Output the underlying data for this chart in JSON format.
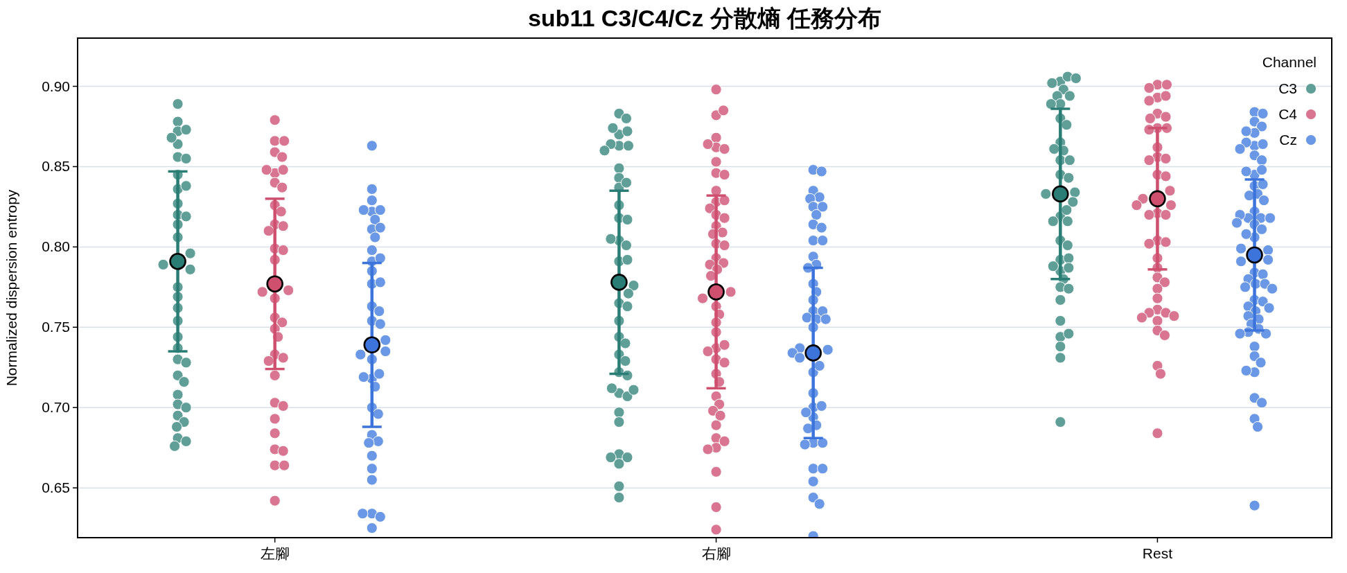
{
  "chart_data": {
    "type": "scatter",
    "title": "sub11 C3/C4/Cz 分散熵 任務分布",
    "ylabel": "Normalized dispersion entropy",
    "legend_title": "Channel",
    "categories": [
      "左腳",
      "右腳",
      "Rest"
    ],
    "ylim": [
      0.619,
      0.93
    ],
    "yticks": [
      {
        "value": 0.65,
        "label": "0.65"
      },
      {
        "value": 0.7,
        "label": "0.70"
      },
      {
        "value": 0.75,
        "label": "0.75"
      },
      {
        "value": 0.8,
        "label": "0.80"
      },
      {
        "value": 0.85,
        "label": "0.85"
      },
      {
        "value": 0.9,
        "label": "0.90"
      }
    ],
    "grid": "y",
    "legend": "top right",
    "marker": "circle",
    "series": [
      {
        "name": "C3",
        "color": "#5f9f98",
        "x": [
          "左腳",
          "左腳",
          "左腳",
          "左腳",
          "左腳",
          "左腳",
          "左腳",
          "左腳",
          "左腳",
          "左腳",
          "左腳",
          "左腳",
          "左腳",
          "左腳",
          "左腳",
          "左腳",
          "左腳",
          "左腳",
          "左腳",
          "左腳",
          "左腳",
          "左腳",
          "左腳",
          "左腳",
          "左腳",
          "左腳",
          "左腳",
          "左腳",
          "左腳",
          "左腳",
          "左腳",
          "左腳",
          "左腳",
          "左腳",
          "左腳",
          "左腳",
          "左腳",
          "左腳",
          "右腳",
          "右腳",
          "右腳",
          "右腳",
          "右腳",
          "右腳",
          "右腳",
          "右腳",
          "右腳",
          "右腳",
          "右腳",
          "右腳",
          "右腳",
          "右腳",
          "右腳",
          "右腳",
          "右腳",
          "右腳",
          "右腳",
          "右腳",
          "右腳",
          "右腳",
          "右腳",
          "右腳",
          "右腳",
          "右腳",
          "右腳",
          "右腳",
          "右腳",
          "右腳",
          "右腳",
          "右腳",
          "右腳",
          "右腳",
          "右腳",
          "右腳",
          "右腳",
          "右腳",
          "右腳",
          "右腳",
          "右腳",
          "右腳",
          "右腳",
          "右腳",
          "Rest",
          "Rest",
          "Rest",
          "Rest",
          "Rest",
          "Rest",
          "Rest",
          "Rest",
          "Rest",
          "Rest",
          "Rest",
          "Rest",
          "Rest",
          "Rest",
          "Rest",
          "Rest",
          "Rest",
          "Rest",
          "Rest",
          "Rest",
          "Rest",
          "Rest",
          "Rest",
          "Rest",
          "Rest",
          "Rest",
          "Rest",
          "Rest",
          "Rest",
          "Rest",
          "Rest",
          "Rest",
          "Rest",
          "Rest",
          "Rest",
          "Rest",
          "Rest",
          "Rest",
          "Rest",
          "Rest",
          "Rest",
          "Rest"
        ],
        "values": [
          0.889,
          0.878,
          0.872,
          0.856,
          0.864,
          0.873,
          0.868,
          0.855,
          0.845,
          0.836,
          0.838,
          0.827,
          0.82,
          0.819,
          0.814,
          0.806,
          0.796,
          0.786,
          0.789,
          0.775,
          0.769,
          0.762,
          0.754,
          0.744,
          0.737,
          0.73,
          0.728,
          0.72,
          0.716,
          0.708,
          0.702,
          0.695,
          0.691,
          0.688,
          0.681,
          0.679,
          0.676,
          0.7,
          0.883,
          0.88,
          0.87,
          0.872,
          0.874,
          0.863,
          0.863,
          0.864,
          0.86,
          0.849,
          0.843,
          0.837,
          0.84,
          0.826,
          0.818,
          0.817,
          0.804,
          0.801,
          0.805,
          0.791,
          0.792,
          0.776,
          0.771,
          0.765,
          0.763,
          0.754,
          0.744,
          0.74,
          0.733,
          0.729,
          0.722,
          0.72,
          0.709,
          0.707,
          0.712,
          0.711,
          0.697,
          0.691,
          0.671,
          0.669,
          0.669,
          0.665,
          0.651,
          0.644,
          0.903,
          0.906,
          0.902,
          0.905,
          0.898,
          0.894,
          0.894,
          0.889,
          0.889,
          0.88,
          0.876,
          0.865,
          0.86,
          0.861,
          0.854,
          0.854,
          0.845,
          0.843,
          0.834,
          0.833,
          0.828,
          0.819,
          0.823,
          0.816,
          0.816,
          0.804,
          0.801,
          0.792,
          0.793,
          0.785,
          0.788,
          0.787,
          0.78,
          0.775,
          0.774,
          0.767,
          0.754,
          0.744,
          0.746,
          0.738,
          0.731,
          0.691
        ]
      },
      {
        "name": "C4",
        "color": "#d97590",
        "x": [
          "左腳",
          "左腳",
          "左腳",
          "左腳",
          "左腳",
          "左腳",
          "左腳",
          "左腳",
          "左腳",
          "左腳",
          "左腳",
          "左腳",
          "左腳",
          "左腳",
          "左腳",
          "左腳",
          "左腳",
          "左腳",
          "左腳",
          "左腳",
          "左腳",
          "左腳",
          "左腳",
          "左腳",
          "左腳",
          "左腳",
          "左腳",
          "左腳",
          "左腳",
          "左腳",
          "左腳",
          "左腳",
          "左腳",
          "左腳",
          "左腳",
          "左腳",
          "左腳",
          "左腳",
          "右腳",
          "右腳",
          "右腳",
          "右腳",
          "右腳",
          "右腳",
          "右腳",
          "右腳",
          "右腳",
          "右腳",
          "右腳",
          "右腳",
          "右腳",
          "右腳",
          "右腳",
          "右腳",
          "右腳",
          "右腳",
          "右腳",
          "右腳",
          "右腳",
          "右腳",
          "右腳",
          "右腳",
          "右腳",
          "右腳",
          "右腳",
          "右腳",
          "右腳",
          "右腳",
          "右腳",
          "右腳",
          "右腳",
          "右腳",
          "右腳",
          "右腳",
          "右腳",
          "右腳",
          "右腳",
          "右腳",
          "右腳",
          "右腳",
          "右腳",
          "右腳",
          "右腳",
          "右腳",
          "右腳",
          "右腳",
          "右腳",
          "右腳",
          "右腳",
          "Rest",
          "Rest",
          "Rest",
          "Rest",
          "Rest",
          "Rest",
          "Rest",
          "Rest",
          "Rest",
          "Rest",
          "Rest",
          "Rest",
          "Rest",
          "Rest",
          "Rest",
          "Rest",
          "Rest",
          "Rest",
          "Rest",
          "Rest",
          "Rest",
          "Rest",
          "Rest",
          "Rest",
          "Rest",
          "Rest",
          "Rest",
          "Rest",
          "Rest",
          "Rest",
          "Rest",
          "Rest",
          "Rest",
          "Rest",
          "Rest",
          "Rest",
          "Rest",
          "Rest",
          "Rest",
          "Rest",
          "Rest",
          "Rest",
          "Rest",
          "Rest",
          "Rest"
        ],
        "values": [
          0.879,
          0.866,
          0.866,
          0.859,
          0.856,
          0.846,
          0.848,
          0.848,
          0.84,
          0.837,
          0.826,
          0.822,
          0.814,
          0.813,
          0.81,
          0.799,
          0.798,
          0.792,
          0.768,
          0.773,
          0.772,
          0.756,
          0.753,
          0.749,
          0.744,
          0.733,
          0.731,
          0.729,
          0.72,
          0.703,
          0.701,
          0.693,
          0.684,
          0.674,
          0.673,
          0.664,
          0.664,
          0.642,
          0.898,
          0.882,
          0.885,
          0.868,
          0.862,
          0.861,
          0.864,
          0.853,
          0.846,
          0.845,
          0.835,
          0.828,
          0.829,
          0.824,
          0.82,
          0.818,
          0.813,
          0.809,
          0.808,
          0.802,
          0.801,
          0.793,
          0.79,
          0.789,
          0.786,
          0.782,
          0.772,
          0.768,
          0.763,
          0.758,
          0.753,
          0.747,
          0.737,
          0.739,
          0.735,
          0.73,
          0.728,
          0.721,
          0.716,
          0.707,
          0.702,
          0.698,
          0.695,
          0.689,
          0.681,
          0.679,
          0.675,
          0.674,
          0.66,
          0.638,
          0.624,
          0.901,
          0.901,
          0.899,
          0.893,
          0.894,
          0.891,
          0.883,
          0.881,
          0.88,
          0.874,
          0.874,
          0.873,
          0.862,
          0.856,
          0.855,
          0.854,
          0.845,
          0.844,
          0.835,
          0.83,
          0.826,
          0.826,
          0.821,
          0.82,
          0.82,
          0.804,
          0.803,
          0.802,
          0.793,
          0.787,
          0.781,
          0.778,
          0.774,
          0.768,
          0.761,
          0.759,
          0.759,
          0.757,
          0.756,
          0.754,
          0.748,
          0.745,
          0.726,
          0.721,
          0.684
        ]
      },
      {
        "name": "Cz",
        "color": "#6a98e6",
        "x": [
          "左腳",
          "左腳",
          "左腳",
          "左腳",
          "左腳",
          "左腳",
          "左腳",
          "左腳",
          "左腳",
          "左腳",
          "左腳",
          "左腳",
          "左腳",
          "左腳",
          "左腳",
          "左腳",
          "左腳",
          "左腳",
          "左腳",
          "左腳",
          "左腳",
          "左腳",
          "左腳",
          "左腳",
          "左腳",
          "左腳",
          "左腳",
          "左腳",
          "左腳",
          "左腳",
          "左腳",
          "左腳",
          "左腳",
          "左腳",
          "左腳",
          "左腳",
          "左腳",
          "左腳",
          "左腳",
          "左腳",
          "右腳",
          "右腳",
          "右腳",
          "右腳",
          "右腳",
          "右腳",
          "右腳",
          "右腳",
          "右腳",
          "右腳",
          "右腳",
          "右腳",
          "右腳",
          "右腳",
          "右腳",
          "右腳",
          "右腳",
          "右腳",
          "右腳",
          "右腳",
          "右腳",
          "右腳",
          "右腳",
          "右腳",
          "右腳",
          "右腳",
          "右腳",
          "右腳",
          "右腳",
          "右腳",
          "右腳",
          "右腳",
          "右腳",
          "右腳",
          "右腳",
          "右腳",
          "右腳",
          "右腳",
          "右腳",
          "右腳",
          "右腳",
          "右腳",
          "右腳",
          "右腳",
          "右腳",
          "右腳",
          "Rest",
          "Rest",
          "Rest",
          "Rest",
          "Rest",
          "Rest",
          "Rest",
          "Rest",
          "Rest",
          "Rest",
          "Rest",
          "Rest",
          "Rest",
          "Rest",
          "Rest",
          "Rest",
          "Rest",
          "Rest",
          "Rest",
          "Rest",
          "Rest",
          "Rest",
          "Rest",
          "Rest",
          "Rest",
          "Rest",
          "Rest",
          "Rest",
          "Rest",
          "Rest",
          "Rest",
          "Rest",
          "Rest",
          "Rest",
          "Rest",
          "Rest",
          "Rest",
          "Rest",
          "Rest",
          "Rest",
          "Rest",
          "Rest",
          "Rest",
          "Rest",
          "Rest",
          "Rest",
          "Rest",
          "Rest",
          "Rest",
          "Rest",
          "Rest",
          "Rest",
          "Rest",
          "Rest",
          "Rest",
          "Rest",
          "Rest",
          "Rest",
          "Rest",
          "Rest",
          "Rest",
          "Rest",
          "Rest"
        ],
        "values": [
          0.863,
          0.836,
          0.829,
          0.822,
          0.823,
          0.817,
          0.823,
          0.811,
          0.812,
          0.806,
          0.798,
          0.791,
          0.793,
          0.785,
          0.777,
          0.778,
          0.763,
          0.76,
          0.754,
          0.752,
          0.742,
          0.735,
          0.733,
          0.73,
          0.718,
          0.721,
          0.719,
          0.713,
          0.7,
          0.696,
          0.683,
          0.679,
          0.678,
          0.67,
          0.662,
          0.655,
          0.634,
          0.632,
          0.625,
          0.634,
          0.848,
          0.847,
          0.835,
          0.831,
          0.83,
          0.825,
          0.825,
          0.82,
          0.814,
          0.812,
          0.804,
          0.804,
          0.794,
          0.789,
          0.787,
          0.777,
          0.772,
          0.767,
          0.76,
          0.76,
          0.756,
          0.755,
          0.755,
          0.75,
          0.736,
          0.737,
          0.734,
          0.731,
          0.722,
          0.726,
          0.709,
          0.7,
          0.701,
          0.694,
          0.697,
          0.689,
          0.687,
          0.678,
          0.678,
          0.677,
          0.662,
          0.662,
          0.654,
          0.644,
          0.64,
          0.62,
          0.884,
          0.883,
          0.878,
          0.875,
          0.871,
          0.863,
          0.864,
          0.865,
          0.861,
          0.857,
          0.854,
          0.845,
          0.848,
          0.847,
          0.838,
          0.839,
          0.833,
          0.832,
          0.829,
          0.822,
          0.818,
          0.818,
          0.818,
          0.82,
          0.814,
          0.815,
          0.811,
          0.806,
          0.808,
          0.798,
          0.799,
          0.792,
          0.791,
          0.784,
          0.783,
          0.78,
          0.777,
          0.777,
          0.775,
          0.774,
          0.767,
          0.766,
          0.763,
          0.762,
          0.76,
          0.757,
          0.755,
          0.752,
          0.749,
          0.747,
          0.746,
          0.746,
          0.738,
          0.732,
          0.728,
          0.722,
          0.723,
          0.706,
          0.703,
          0.693,
          0.688,
          0.639,
          0.872
        ]
      },
      {
        "color": "#2a7d74",
        "x": [
          "左腳",
          "右腳",
          "Rest"
        ],
        "values": [
          0.791,
          0.778,
          0.833
        ],
        "errors": [
          0.056,
          0.057,
          0.053
        ]
      },
      {
        "color": "#cf4f6f",
        "x": [
          "左腳",
          "右腳",
          "Rest"
        ],
        "values": [
          0.777,
          0.772,
          0.83
        ],
        "errors": [
          0.053,
          0.06,
          0.044
        ]
      },
      {
        "color": "#3d74db",
        "x": [
          "左腳",
          "右腳",
          "Rest"
        ],
        "values": [
          0.739,
          0.734,
          0.795
        ],
        "errors": [
          0.051,
          0.053,
          0.047
        ]
      }
    ]
  }
}
